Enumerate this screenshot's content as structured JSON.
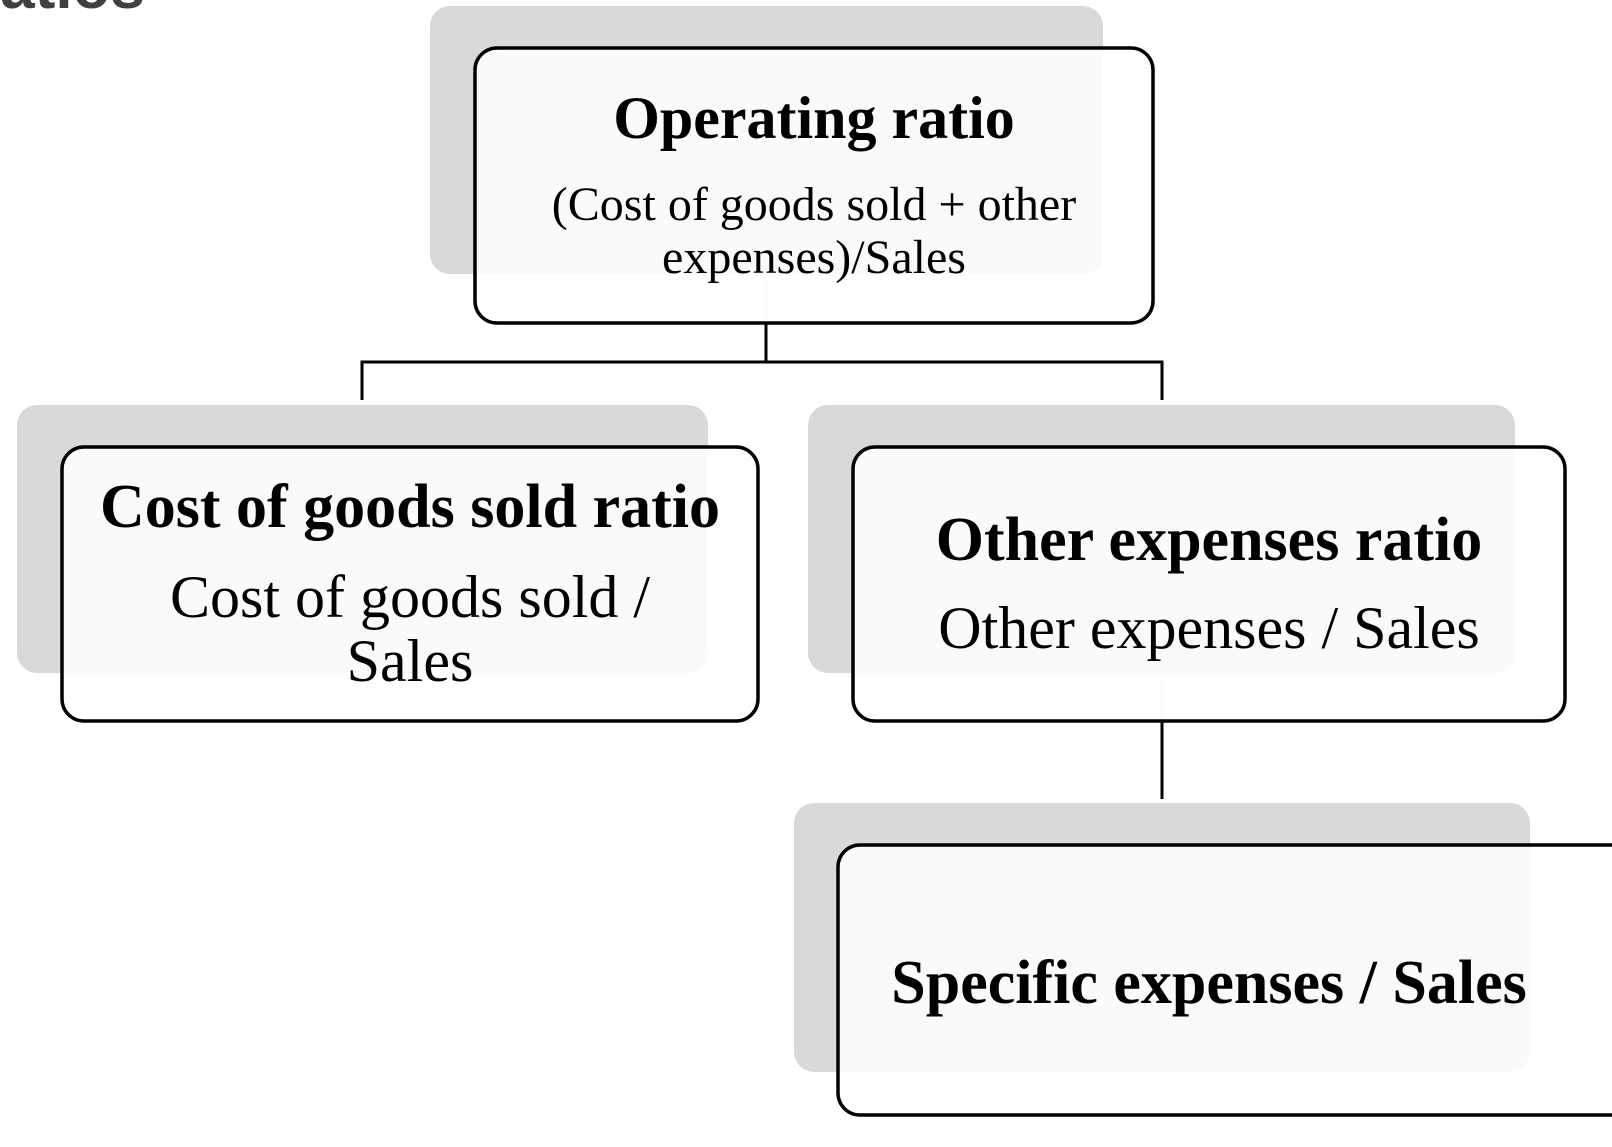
{
  "header": {
    "title": "Ratios"
  },
  "nodes": [
    {
      "title": "Operating ratio",
      "formula": [
        "(Cost of goods sold + other",
        "expenses)/Sales"
      ]
    },
    {
      "title": "Cost of goods sold ratio",
      "formula": [
        "Cost of goods sold /",
        "Sales"
      ]
    },
    {
      "title": "Other expenses ratio",
      "formula": [
        "Other expenses / Sales"
      ]
    },
    {
      "title": "Specific expenses / Sales"
    }
  ]
}
